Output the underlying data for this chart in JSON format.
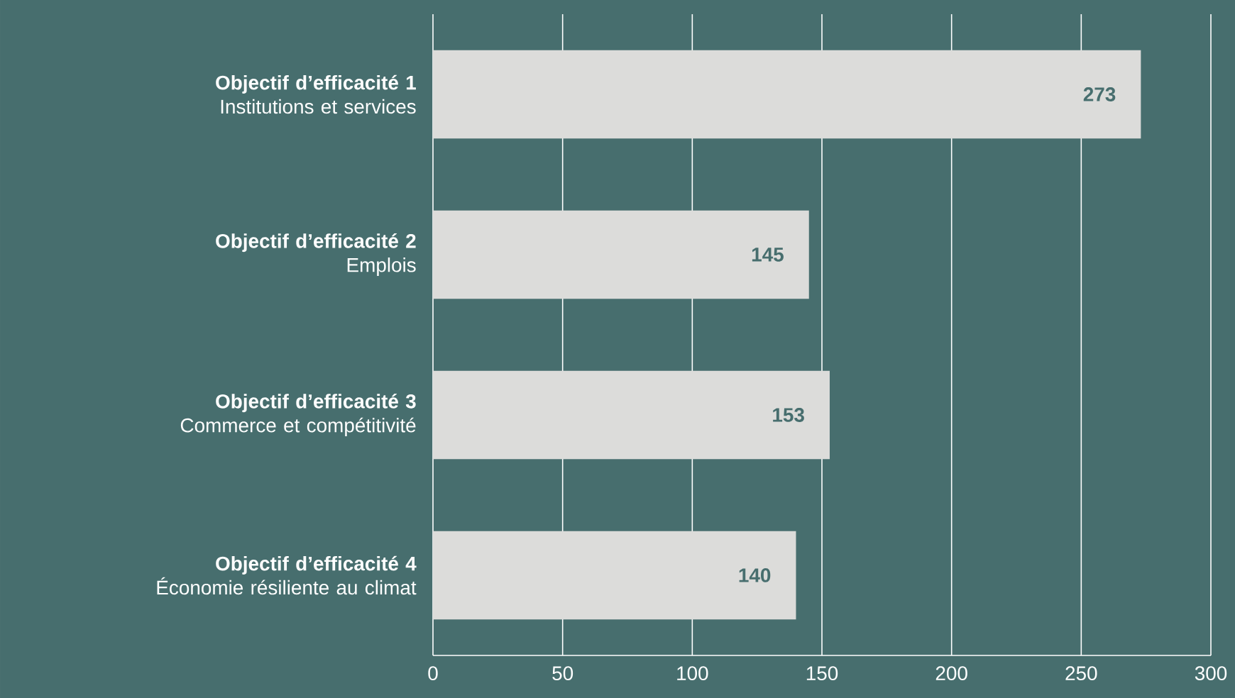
{
  "chart_data": {
    "type": "bar",
    "orientation": "horizontal",
    "categories": [
      "**Objectif d’efficacité 1**\nInstitutions et services",
      "**Objectif d’efficacité 2**\nEmplois",
      "**Objectif d’efficacité 3**\nCommerce et compétitivité",
      "**Objectif d’efficacité 4**\nÉconomie résiliente au climat"
    ],
    "values": [
      273,
      145,
      153,
      140
    ],
    "color": "#dcdcda",
    "xlim": [
      0,
      300
    ],
    "xticks": [
      0,
      50,
      100,
      150,
      200,
      250,
      300
    ],
    "grid": "x",
    "data_labels": true
  }
}
